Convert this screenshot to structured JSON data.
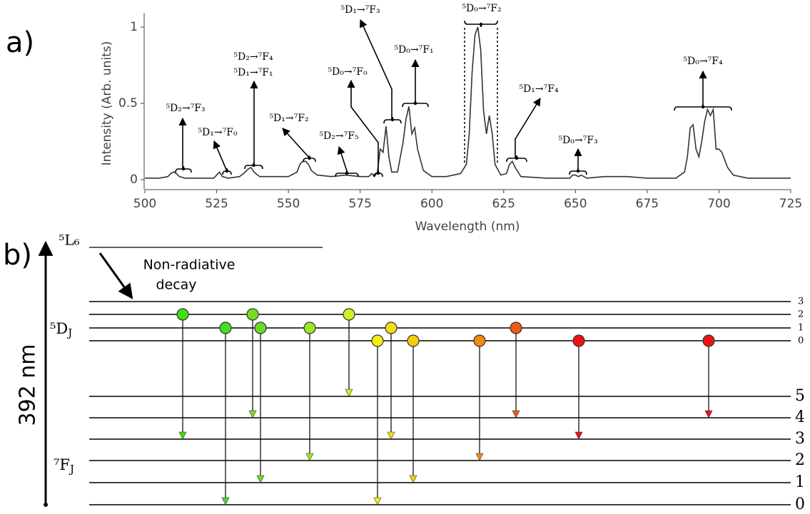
{
  "chart_data": {
    "type": "line",
    "panel_label": "a)",
    "xlabel": "Wavelength (nm)",
    "ylabel": "Intensity (Arb. units)",
    "xlim": [
      500,
      725
    ],
    "xticks": [
      500,
      525,
      550,
      575,
      600,
      625,
      650,
      675,
      700,
      725
    ],
    "ylim": [
      0,
      1
    ],
    "yticks": [
      0,
      0.5,
      1
    ],
    "color": "#333333",
    "x": [
      500,
      505,
      508,
      509,
      510,
      511,
      512,
      514,
      520,
      524,
      525,
      526,
      527,
      529,
      533,
      535,
      536,
      537,
      538,
      540,
      545,
      550,
      553,
      554,
      555,
      556,
      557,
      558,
      560,
      565,
      570,
      575,
      578,
      579,
      580,
      581,
      582,
      583,
      584,
      585,
      586,
      588,
      590,
      591,
      592,
      593,
      594,
      595,
      597,
      600,
      605,
      610,
      612,
      613,
      614,
      615,
      616,
      617,
      618,
      619,
      620,
      621,
      622,
      624,
      626,
      627,
      628,
      629,
      631,
      640,
      648,
      649,
      650,
      651,
      652,
      654,
      660,
      665,
      668,
      675,
      685,
      688,
      689,
      690,
      691,
      692,
      693,
      694,
      695,
      696,
      697,
      698,
      699,
      700,
      701,
      703,
      705,
      710,
      725
    ],
    "values": [
      0.01,
      0.01,
      0.02,
      0.04,
      0.05,
      0.04,
      0.02,
      0.01,
      0.01,
      0.01,
      0.03,
      0.05,
      0.02,
      0.01,
      0.02,
      0.05,
      0.07,
      0.08,
      0.05,
      0.02,
      0.02,
      0.02,
      0.05,
      0.1,
      0.12,
      0.12,
      0.1,
      0.06,
      0.03,
      0.02,
      0.03,
      0.02,
      0.02,
      0.04,
      0.02,
      0.05,
      0.2,
      0.18,
      0.35,
      0.15,
      0.05,
      0.05,
      0.25,
      0.4,
      0.48,
      0.3,
      0.34,
      0.2,
      0.06,
      0.02,
      0.02,
      0.04,
      0.1,
      0.3,
      0.7,
      0.95,
      1.0,
      0.85,
      0.45,
      0.3,
      0.42,
      0.3,
      0.1,
      0.03,
      0.04,
      0.1,
      0.12,
      0.08,
      0.02,
      0.01,
      0.01,
      0.03,
      0.03,
      0.02,
      0.03,
      0.01,
      0.02,
      0.02,
      0.02,
      0.01,
      0.01,
      0.05,
      0.15,
      0.34,
      0.36,
      0.2,
      0.15,
      0.25,
      0.38,
      0.46,
      0.42,
      0.46,
      0.2,
      0.2,
      0.18,
      0.08,
      0.03,
      0.01,
      0.01
    ],
    "annotations": [
      "⁵D₂→⁷F₃",
      "⁵D₁→⁷F₀",
      "⁵D₂→⁷F₄",
      "⁵D₁→⁷F₁",
      "⁵D₁→⁷F₂",
      "⁵D₂→⁷F₅",
      "⁵D₀→⁷F₀",
      "⁵D₁→⁷F₃",
      "⁵D₀→⁷F₁",
      "⁵D₀→⁷F₂",
      "⁵D₁→⁷F₄",
      "⁵D₀→⁷F₃",
      "⁵D₀→⁷F₄"
    ]
  },
  "diagram": {
    "panel_label": "b)",
    "excitation": "392 nm",
    "top_level": "⁵L₆",
    "decay_label": [
      "Non-radiative",
      "decay"
    ],
    "upper_term": "⁵D",
    "upper_term_sub": "J",
    "lower_term": "⁷F",
    "lower_term_sub": "J",
    "upper_levels": [
      "3",
      "2",
      "1",
      "0"
    ],
    "lower_levels": [
      "5",
      "4",
      "3",
      "2",
      "1",
      "0"
    ]
  }
}
